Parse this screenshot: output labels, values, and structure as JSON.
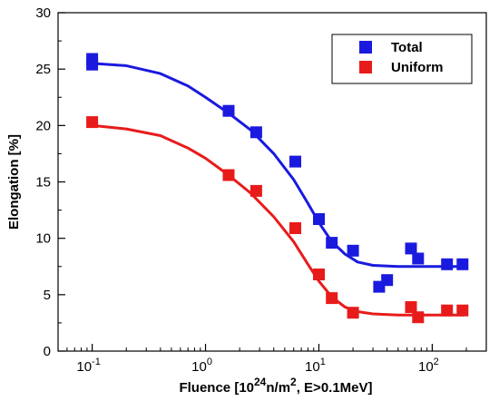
{
  "chart_data": {
    "type": "scatter",
    "title": "",
    "xlabel": "Fluence [10^24 n/m^2, E>0.1MeV]",
    "xlabel_parts": {
      "prefix": "Fluence [10",
      "exp1": "24",
      "middle": "n/m",
      "exp2": "2",
      "suffix": ", E>0.1MeV]"
    },
    "ylabel": "Elongation [%]",
    "xscale": "log",
    "xlim": [
      0.05,
      300
    ],
    "ylim": [
      0,
      30
    ],
    "grid": false,
    "legend_position": "top-right",
    "x_ticks": [
      {
        "value": 0.1,
        "base": "10",
        "exp": "-1"
      },
      {
        "value": 1,
        "base": "10",
        "exp": "0"
      },
      {
        "value": 10,
        "base": "10",
        "exp": "1"
      },
      {
        "value": 100,
        "base": "10",
        "exp": "2"
      }
    ],
    "y_ticks": [
      0,
      5,
      10,
      15,
      20,
      25,
      30
    ],
    "series": [
      {
        "name": "Total",
        "color": "#1a1adf",
        "marker": "square",
        "points": [
          [
            0.1,
            25.4
          ],
          [
            0.1,
            25.9
          ],
          [
            1.6,
            21.3
          ],
          [
            2.8,
            19.4
          ],
          [
            6.2,
            16.8
          ],
          [
            10,
            11.7
          ],
          [
            13,
            9.6
          ],
          [
            20,
            8.9
          ],
          [
            34,
            5.7
          ],
          [
            40,
            6.3
          ],
          [
            65,
            9.1
          ],
          [
            75,
            8.2
          ],
          [
            135,
            7.7
          ],
          [
            185,
            7.7
          ]
        ],
        "fit": [
          [
            0.1,
            25.5
          ],
          [
            0.2,
            25.3
          ],
          [
            0.4,
            24.6
          ],
          [
            0.7,
            23.5
          ],
          [
            1.0,
            22.5
          ],
          [
            1.6,
            21.1
          ],
          [
            2.5,
            19.6
          ],
          [
            4.0,
            17.5
          ],
          [
            6.0,
            15.2
          ],
          [
            8.0,
            13.1
          ],
          [
            10.0,
            11.4
          ],
          [
            13.0,
            9.7
          ],
          [
            17.0,
            8.6
          ],
          [
            22.0,
            7.9
          ],
          [
            30.0,
            7.6
          ],
          [
            50.0,
            7.5
          ],
          [
            100.0,
            7.5
          ],
          [
            190.0,
            7.5
          ]
        ]
      },
      {
        "name": "Uniform",
        "color": "#e81b1b",
        "marker": "square",
        "points": [
          [
            0.1,
            20.3
          ],
          [
            1.6,
            15.6
          ],
          [
            2.8,
            14.2
          ],
          [
            6.2,
            10.9
          ],
          [
            10,
            6.8
          ],
          [
            13,
            4.7
          ],
          [
            20,
            3.4
          ],
          [
            65,
            3.9
          ],
          [
            75,
            3.0
          ],
          [
            135,
            3.6
          ],
          [
            185,
            3.6
          ]
        ],
        "fit": [
          [
            0.1,
            20.0
          ],
          [
            0.2,
            19.7
          ],
          [
            0.4,
            19.1
          ],
          [
            0.7,
            18.0
          ],
          [
            1.0,
            17.1
          ],
          [
            1.6,
            15.6
          ],
          [
            2.5,
            14.0
          ],
          [
            4.0,
            11.9
          ],
          [
            6.0,
            9.7
          ],
          [
            8.0,
            7.7
          ],
          [
            10.0,
            6.2
          ],
          [
            13.0,
            4.8
          ],
          [
            17.0,
            3.9
          ],
          [
            22.0,
            3.5
          ],
          [
            30.0,
            3.3
          ],
          [
            50.0,
            3.2
          ],
          [
            100.0,
            3.2
          ],
          [
            190.0,
            3.2
          ]
        ]
      }
    ]
  }
}
